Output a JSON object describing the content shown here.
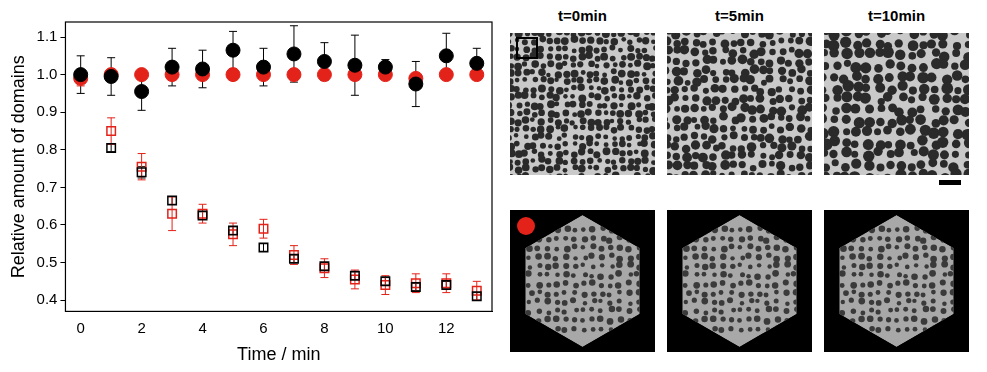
{
  "chart_data": {
    "type": "scatter",
    "xlabel": "Time / min",
    "ylabel": "Relative amount of domains",
    "x": [
      0,
      1,
      2,
      3,
      4,
      5,
      6,
      7,
      8,
      9,
      10,
      11,
      12,
      13
    ],
    "xlim": [
      -0.5,
      13.5
    ],
    "xticks": [
      0,
      2,
      4,
      6,
      8,
      10,
      12
    ],
    "ylim": [
      0.37,
      1.14
    ],
    "yticks": [
      0.4,
      0.5,
      0.6,
      0.7,
      0.8,
      0.9,
      {
        "value": 1,
        "label": "1.0"
      },
      1.1
    ],
    "grid": false,
    "series": [
      {
        "color": "#000000",
        "marker": "circle",
        "values": [
          1.0,
          0.995,
          0.955,
          1.02,
          1.015,
          1.065,
          1.02,
          1.055,
          1.035,
          1.025,
          1.02,
          0.975,
          1.05,
          1.03
        ],
        "errors": [
          0.05,
          0.05,
          0.05,
          0.05,
          0.05,
          0.05,
          0.05,
          0.075,
          0.05,
          0.08,
          0.02,
          0.06,
          0.06,
          0.04
        ]
      },
      {
        "color": "#e32219",
        "marker": "circle",
        "values": [
          0.99,
          1.0,
          1.0,
          1.0,
          1.0,
          1.0,
          1.0,
          1.0,
          1.0,
          1.0,
          1.0,
          0.99,
          1.0,
          1.0
        ],
        "errors": [
          0.01,
          0.005,
          0.005,
          0.005,
          0.005,
          0.005,
          0.005,
          0.005,
          0.005,
          0.005,
          0.005,
          0.01,
          0.005,
          0.005
        ]
      },
      {
        "color": "#000000",
        "marker": "open_square",
        "values": [
          1.0,
          0.805,
          0.74,
          0.665,
          0.625,
          0.585,
          0.54,
          0.51,
          0.49,
          0.465,
          0.45,
          0.435,
          0.44,
          0.41
        ],
        "errors": [
          0.01,
          0.01,
          0.015,
          0.01,
          0.01,
          0.01,
          0.01,
          0.01,
          0.01,
          0.01,
          0.01,
          0.01,
          0.01,
          0.01
        ]
      },
      {
        "color": "#e32219",
        "marker": "open_square",
        "values": [
          0.99,
          0.85,
          0.755,
          0.63,
          0.63,
          0.575,
          0.59,
          0.52,
          0.485,
          0.455,
          0.44,
          0.445,
          0.445,
          0.425
        ],
        "errors": [
          0.02,
          0.035,
          0.035,
          0.045,
          0.025,
          0.03,
          0.025,
          0.025,
          0.025,
          0.025,
          0.025,
          0.025,
          0.025,
          0.025
        ]
      }
    ]
  },
  "panels": {
    "titles": [
      "t=0min",
      "t=5min",
      "t=10min"
    ]
  }
}
